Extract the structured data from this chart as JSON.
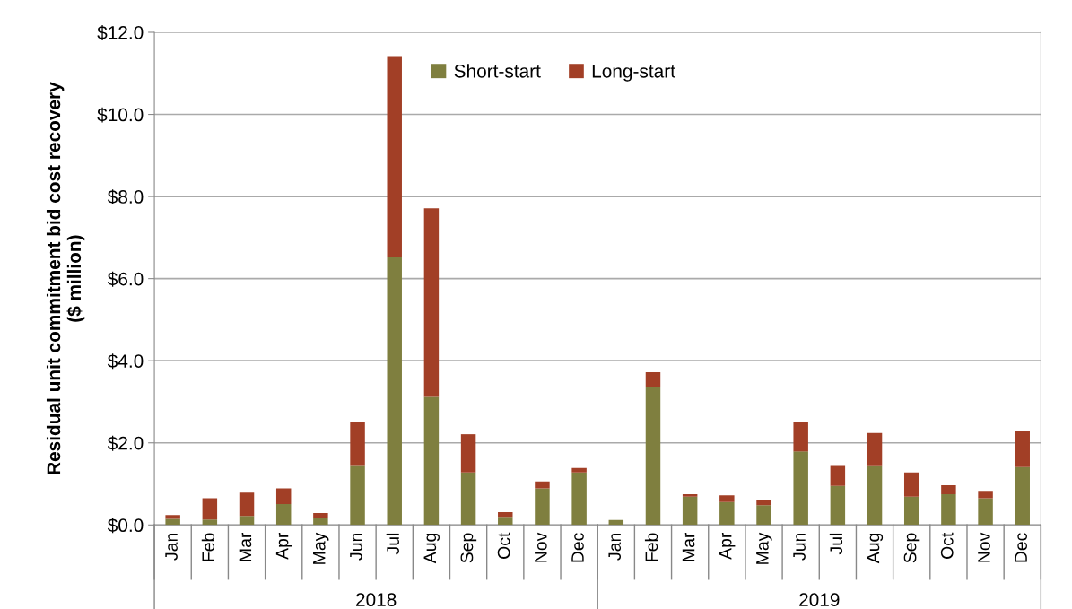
{
  "chart_data": {
    "type": "bar",
    "stacked": true,
    "ylabel": "Residual unit commitment bid cost recovery\n($ million)",
    "categories": [
      "Jan",
      "Feb",
      "Mar",
      "Apr",
      "May",
      "Jun",
      "Jul",
      "Aug",
      "Sep",
      "Oct",
      "Nov",
      "Dec",
      "Jan",
      "Feb",
      "Mar",
      "Apr",
      "May",
      "Jun",
      "Jul",
      "Aug",
      "Sep",
      "Oct",
      "Nov",
      "Dec"
    ],
    "series": [
      {
        "name": "Short-start",
        "color": "#7f7f3f",
        "values": [
          0.15,
          0.13,
          0.22,
          0.51,
          0.18,
          1.44,
          6.52,
          3.12,
          1.28,
          0.2,
          0.89,
          1.28,
          0.12,
          3.35,
          0.69,
          0.56,
          0.48,
          1.79,
          0.95,
          1.43,
          0.69,
          0.75,
          0.65,
          1.41
        ]
      },
      {
        "name": "Long-start",
        "color": "#a23f26",
        "values": [
          0.09,
          0.52,
          0.57,
          0.38,
          0.11,
          1.06,
          4.9,
          4.59,
          0.93,
          0.11,
          0.17,
          0.11,
          null,
          0.37,
          0.06,
          0.16,
          0.13,
          0.71,
          0.49,
          0.81,
          0.59,
          0.22,
          0.18,
          0.88
        ]
      }
    ],
    "annotations": [
      "2018",
      "2019"
    ],
    "ylim": [
      0,
      12
    ],
    "yticks": [
      {
        "value": 0,
        "label": "$0.0"
      },
      {
        "value": 2,
        "label": "$2.0"
      },
      {
        "value": 4,
        "label": "$4.0"
      },
      {
        "value": 6,
        "label": "$6.0"
      },
      {
        "value": 8,
        "label": "$8.0"
      },
      {
        "value": 10,
        "label": "$10.0"
      },
      {
        "value": 12,
        "label": "$12.0"
      }
    ],
    "grid": "y",
    "legend": "top"
  }
}
